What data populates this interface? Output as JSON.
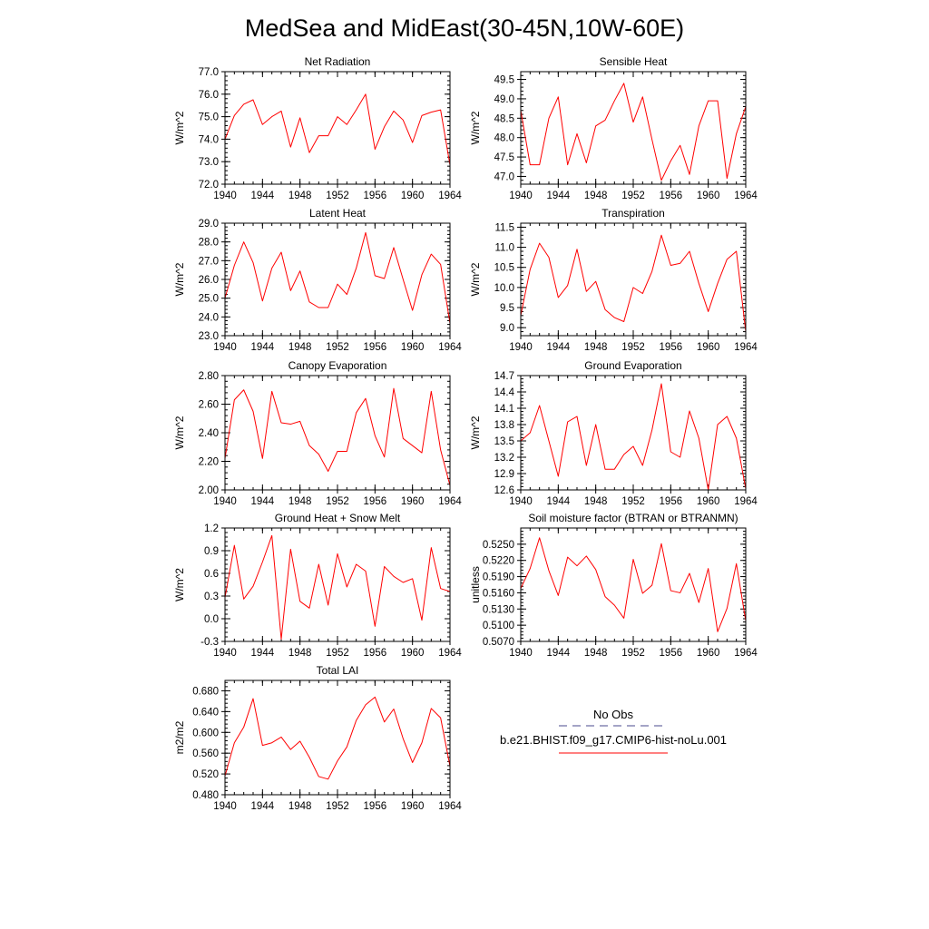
{
  "figure_title": "MedSea and MidEast(30-45N,10W-60E)",
  "legend": {
    "entries": [
      {
        "label": "No Obs",
        "color": "#4a4a8c",
        "style": "dashed"
      },
      {
        "label": "b.e21.BHIST.f09_g17.CMIP6-hist-noLu.001",
        "color": "#ff0000",
        "style": "solid"
      }
    ]
  },
  "chart_data": [
    {
      "type": "line",
      "title": "Net Radiation",
      "ylabel": "W/m^2",
      "x": [
        1940,
        1941,
        1942,
        1943,
        1944,
        1945,
        1946,
        1947,
        1948,
        1949,
        1950,
        1951,
        1952,
        1953,
        1954,
        1955,
        1956,
        1957,
        1958,
        1959,
        1960,
        1961,
        1962,
        1963,
        1964
      ],
      "xlim": [
        1940,
        1964
      ],
      "xticks": [
        "1940",
        "1944",
        "1948",
        "1952",
        "1956",
        "1960",
        "1964"
      ],
      "ylim": [
        72.0,
        77.0
      ],
      "yticks": [
        "72.0",
        "73.0",
        "74.0",
        "75.0",
        "76.0",
        "77.0"
      ],
      "series": [
        {
          "color": "#ff0000",
          "values": [
            74.0,
            75.05,
            75.55,
            75.75,
            74.65,
            75.0,
            75.25,
            73.65,
            74.95,
            73.4,
            74.15,
            74.15,
            75.0,
            74.65,
            75.3,
            76.0,
            73.55,
            74.55,
            75.25,
            74.85,
            73.85,
            75.05,
            75.2,
            75.3,
            72.85
          ]
        }
      ]
    },
    {
      "type": "line",
      "title": "Sensible Heat",
      "ylabel": "W/m^2",
      "x": [
        1940,
        1941,
        1942,
        1943,
        1944,
        1945,
        1946,
        1947,
        1948,
        1949,
        1950,
        1951,
        1952,
        1953,
        1954,
        1955,
        1956,
        1957,
        1958,
        1959,
        1960,
        1961,
        1962,
        1963,
        1964
      ],
      "xlim": [
        1940,
        1964
      ],
      "xticks": [
        "1940",
        "1944",
        "1948",
        "1952",
        "1956",
        "1960",
        "1964"
      ],
      "ylim": [
        46.8,
        49.7
      ],
      "yticks": [
        "47.0",
        "47.5",
        "48.0",
        "48.5",
        "49.0",
        "49.5"
      ],
      "series": [
        {
          "color": "#ff0000",
          "values": [
            48.7,
            47.3,
            47.3,
            48.5,
            49.05,
            47.3,
            48.1,
            47.35,
            48.3,
            48.45,
            48.95,
            49.4,
            48.4,
            49.05,
            47.95,
            46.9,
            47.4,
            47.8,
            47.05,
            48.3,
            48.95,
            48.95,
            46.95,
            48.1,
            48.8
          ]
        }
      ]
    },
    {
      "type": "line",
      "title": "Latent Heat",
      "ylabel": "W/m^2",
      "x": [
        1940,
        1941,
        1942,
        1943,
        1944,
        1945,
        1946,
        1947,
        1948,
        1949,
        1950,
        1951,
        1952,
        1953,
        1954,
        1955,
        1956,
        1957,
        1958,
        1959,
        1960,
        1961,
        1962,
        1963,
        1964
      ],
      "xlim": [
        1940,
        1964
      ],
      "xticks": [
        "1940",
        "1944",
        "1948",
        "1952",
        "1956",
        "1960",
        "1964"
      ],
      "ylim": [
        23.0,
        29.0
      ],
      "yticks": [
        "23.0",
        "24.0",
        "25.0",
        "26.0",
        "27.0",
        "28.0",
        "29.0"
      ],
      "series": [
        {
          "color": "#ff0000",
          "values": [
            25.0,
            26.75,
            28.0,
            26.9,
            24.85,
            26.6,
            27.45,
            25.4,
            26.45,
            24.8,
            24.5,
            24.5,
            25.75,
            25.2,
            26.6,
            28.5,
            26.2,
            26.05,
            27.7,
            26.0,
            24.35,
            26.25,
            27.35,
            26.8,
            23.65
          ]
        }
      ]
    },
    {
      "type": "line",
      "title": "Transpiration",
      "ylabel": "W/m^2",
      "x": [
        1940,
        1941,
        1942,
        1943,
        1944,
        1945,
        1946,
        1947,
        1948,
        1949,
        1950,
        1951,
        1952,
        1953,
        1954,
        1955,
        1956,
        1957,
        1958,
        1959,
        1960,
        1961,
        1962,
        1963,
        1964
      ],
      "xlim": [
        1940,
        1964
      ],
      "xticks": [
        "1940",
        "1944",
        "1948",
        "1952",
        "1956",
        "1960",
        "1964"
      ],
      "ylim": [
        8.8,
        11.6
      ],
      "yticks": [
        "9.0",
        "9.5",
        "10.0",
        "10.5",
        "11.0",
        "11.5"
      ],
      "series": [
        {
          "color": "#ff0000",
          "values": [
            9.3,
            10.45,
            11.1,
            10.75,
            9.75,
            10.05,
            10.95,
            9.9,
            10.15,
            9.45,
            9.25,
            9.15,
            10.0,
            9.85,
            10.4,
            11.3,
            10.55,
            10.6,
            10.9,
            10.1,
            9.4,
            10.1,
            10.7,
            10.9,
            8.9
          ]
        }
      ]
    },
    {
      "type": "line",
      "title": "Canopy Evaporation",
      "ylabel": "W/m^2",
      "x": [
        1940,
        1941,
        1942,
        1943,
        1944,
        1945,
        1946,
        1947,
        1948,
        1949,
        1950,
        1951,
        1952,
        1953,
        1954,
        1955,
        1956,
        1957,
        1958,
        1959,
        1960,
        1961,
        1962,
        1963,
        1964
      ],
      "xlim": [
        1940,
        1964
      ],
      "xticks": [
        "1940",
        "1944",
        "1948",
        "1952",
        "1956",
        "1960",
        "1964"
      ],
      "ylim": [
        2.0,
        2.8
      ],
      "yticks": [
        "2.00",
        "2.20",
        "2.40",
        "2.60",
        "2.80"
      ],
      "series": [
        {
          "color": "#ff0000",
          "values": [
            2.22,
            2.63,
            2.7,
            2.55,
            2.22,
            2.69,
            2.47,
            2.46,
            2.48,
            2.31,
            2.25,
            2.13,
            2.27,
            2.27,
            2.54,
            2.64,
            2.38,
            2.23,
            2.71,
            2.36,
            2.31,
            2.26,
            2.69,
            2.28,
            2.03
          ]
        }
      ]
    },
    {
      "type": "line",
      "title": "Ground Evaporation",
      "ylabel": "W/m^2",
      "x": [
        1940,
        1941,
        1942,
        1943,
        1944,
        1945,
        1946,
        1947,
        1948,
        1949,
        1950,
        1951,
        1952,
        1953,
        1954,
        1955,
        1956,
        1957,
        1958,
        1959,
        1960,
        1961,
        1962,
        1963,
        1964
      ],
      "xlim": [
        1940,
        1964
      ],
      "xticks": [
        "1940",
        "1944",
        "1948",
        "1952",
        "1956",
        "1960",
        "1964"
      ],
      "ylim": [
        12.6,
        14.7
      ],
      "yticks": [
        "12.6",
        "12.9",
        "13.2",
        "13.5",
        "13.8",
        "14.1",
        "14.4",
        "14.7"
      ],
      "series": [
        {
          "color": "#ff0000",
          "values": [
            13.5,
            13.65,
            14.15,
            13.5,
            12.85,
            13.85,
            13.95,
            13.05,
            13.8,
            12.98,
            12.98,
            13.25,
            13.4,
            13.05,
            13.7,
            14.55,
            13.3,
            13.2,
            14.05,
            13.55,
            12.6,
            13.8,
            13.95,
            13.55,
            12.62
          ]
        }
      ]
    },
    {
      "type": "line",
      "title": "Ground Heat + Snow Melt",
      "ylabel": "W/m^2",
      "x": [
        1940,
        1941,
        1942,
        1943,
        1944,
        1945,
        1946,
        1947,
        1948,
        1949,
        1950,
        1951,
        1952,
        1953,
        1954,
        1955,
        1956,
        1957,
        1958,
        1959,
        1960,
        1961,
        1962,
        1963,
        1964
      ],
      "xlim": [
        1940,
        1964
      ],
      "xticks": [
        "1940",
        "1944",
        "1948",
        "1952",
        "1956",
        "1960",
        "1964"
      ],
      "ylim": [
        -0.3,
        1.2
      ],
      "yticks": [
        "-0.3",
        "0.0",
        "0.3",
        "0.6",
        "0.9",
        "1.2"
      ],
      "series": [
        {
          "color": "#ff0000",
          "values": [
            0.28,
            0.97,
            0.26,
            0.43,
            0.75,
            1.1,
            -0.27,
            0.92,
            0.23,
            0.14,
            0.72,
            0.18,
            0.86,
            0.42,
            0.72,
            0.63,
            -0.1,
            0.69,
            0.56,
            0.48,
            0.53,
            -0.02,
            0.94,
            0.4,
            0.36
          ]
        }
      ]
    },
    {
      "type": "line",
      "title": "Soil moisture factor (BTRAN or BTRANMN)",
      "ylabel": "unitless",
      "x": [
        1940,
        1941,
        1942,
        1943,
        1944,
        1945,
        1946,
        1947,
        1948,
        1949,
        1950,
        1951,
        1952,
        1953,
        1954,
        1955,
        1956,
        1957,
        1958,
        1959,
        1960,
        1961,
        1962,
        1963,
        1964
      ],
      "xlim": [
        1940,
        1964
      ],
      "xticks": [
        "1940",
        "1944",
        "1948",
        "1952",
        "1956",
        "1960",
        "1964"
      ],
      "ylim": [
        0.507,
        0.528
      ],
      "yticks": [
        "0.5070",
        "0.5100",
        "0.5130",
        "0.5160",
        "0.5190",
        "0.5220",
        "0.5250"
      ],
      "series": [
        {
          "color": "#ff0000",
          "values": [
            0.5168,
            0.5205,
            0.5262,
            0.5201,
            0.5155,
            0.5226,
            0.521,
            0.5228,
            0.5203,
            0.5153,
            0.5137,
            0.5113,
            0.5222,
            0.5159,
            0.5174,
            0.5251,
            0.5164,
            0.516,
            0.5196,
            0.5142,
            0.5205,
            0.5088,
            0.5131,
            0.5214,
            0.5108
          ]
        }
      ]
    },
    {
      "type": "line",
      "title": "Total LAI",
      "ylabel": "m2/m2",
      "x": [
        1940,
        1941,
        1942,
        1943,
        1944,
        1945,
        1946,
        1947,
        1948,
        1949,
        1950,
        1951,
        1952,
        1953,
        1954,
        1955,
        1956,
        1957,
        1958,
        1959,
        1960,
        1961,
        1962,
        1963,
        1964
      ],
      "xlim": [
        1940,
        1964
      ],
      "xticks": [
        "1940",
        "1944",
        "1948",
        "1952",
        "1956",
        "1960",
        "1964"
      ],
      "ylim": [
        0.48,
        0.7
      ],
      "yticks": [
        "0.480",
        "0.520",
        "0.560",
        "0.600",
        "0.640",
        "0.680"
      ],
      "series": [
        {
          "color": "#ff0000",
          "values": [
            0.516,
            0.58,
            0.61,
            0.665,
            0.575,
            0.58,
            0.591,
            0.567,
            0.583,
            0.552,
            0.515,
            0.51,
            0.545,
            0.572,
            0.623,
            0.653,
            0.668,
            0.62,
            0.645,
            0.588,
            0.542,
            0.58,
            0.646,
            0.628,
            0.535
          ]
        }
      ]
    }
  ]
}
